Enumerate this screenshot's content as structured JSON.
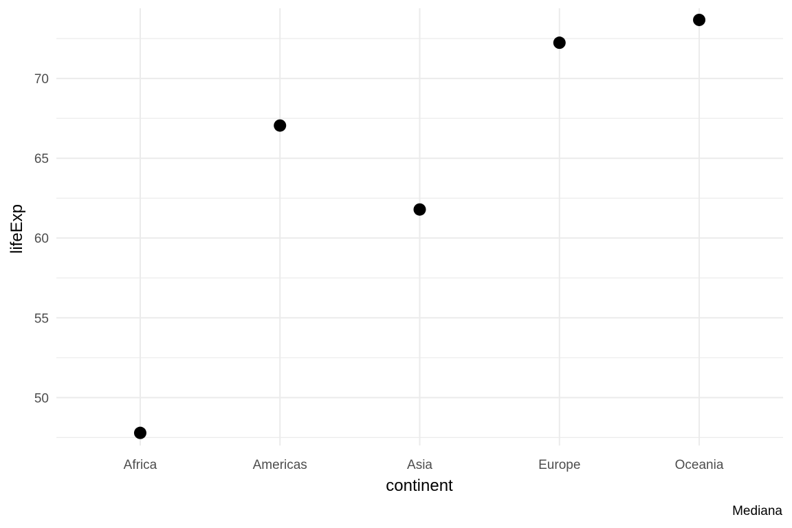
{
  "chart_data": {
    "type": "scatter",
    "title": "",
    "xlabel": "continent",
    "ylabel": "lifeExp",
    "caption": "Mediana",
    "categories": [
      "Africa",
      "Americas",
      "Asia",
      "Europe",
      "Oceania"
    ],
    "values": [
      47.79,
      67.05,
      61.79,
      72.24,
      73.67
    ],
    "ylim": [
      47.0,
      74.4
    ],
    "yticks": [
      50,
      55,
      60,
      65,
      70
    ],
    "grid": true,
    "legend": "none",
    "point_color": "#000000",
    "grid_color": "#ebebeb"
  }
}
